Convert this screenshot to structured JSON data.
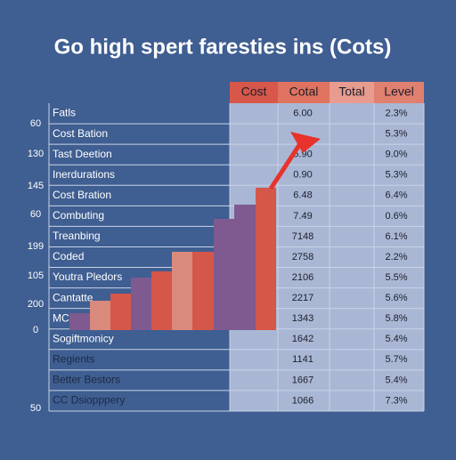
{
  "header": {
    "title": "Go high spert faresties ins (Cots)"
  },
  "table": {
    "columns": [
      "Cost",
      "Cotal",
      "Total",
      "Level"
    ],
    "rows": [
      [
        "Fatls",
        "6.00",
        "2.3%"
      ],
      [
        "Cost Bation",
        null,
        "5.3%"
      ],
      [
        "Tast Deetion",
        "5.90",
        "9.0%"
      ],
      [
        "Inerdurations",
        "0.90",
        "5.3%"
      ],
      [
        "Cost Bration",
        "6.48",
        "6.4%"
      ],
      [
        "Combuting",
        "7.49",
        "0.6%"
      ],
      [
        "Treanbing",
        "7148",
        "6.1%"
      ],
      [
        "Coded",
        "2758",
        "2.2%"
      ],
      [
        "Youtra Pledors",
        "2106",
        "5.5%"
      ],
      [
        "Cantatte",
        "2217",
        "5.6%"
      ],
      [
        "MC",
        "1343",
        "5.8%"
      ],
      [
        "Sogiftmonicy",
        "1642",
        "5.4%"
      ],
      [
        "Regients",
        "1141",
        "5.7%"
      ],
      [
        "Better Bestors",
        "1667",
        "5.4%"
      ],
      [
        "CC Dsiopppery",
        "1066",
        "7.3%"
      ]
    ]
  },
  "left_labels": [
    "60",
    "130",
    "145",
    "60",
    "199",
    "105",
    "200",
    "0",
    "50"
  ]
}
